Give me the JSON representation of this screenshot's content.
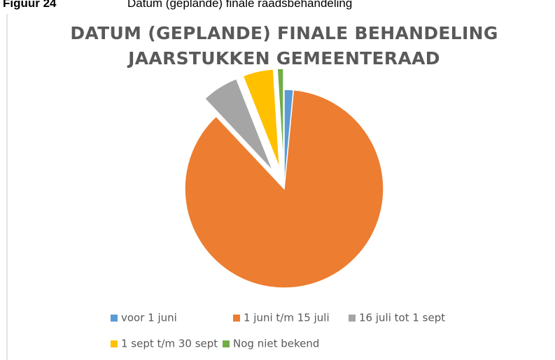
{
  "caption": {
    "label": "Figuur 24",
    "text": "Datum (geplande) finale raadsbehandeling"
  },
  "chart_data": {
    "type": "pie",
    "title": [
      "DATUM (GEPLANDE) FINALE BEHANDELING",
      "JAARSTUKKEN GEMEENTERAAD"
    ],
    "categories": [
      "voor 1 juni",
      "1 juni t/m 15 juli",
      "16 juli tot 1 sept",
      "1 sept t/m 30 sept",
      "Nog niet bekend"
    ],
    "values": [
      1.5,
      86.5,
      6,
      5,
      1
    ],
    "colors": [
      "#5b9bd5",
      "#ed7d31",
      "#a5a5a5",
      "#ffc000",
      "#70ad47"
    ],
    "exploded": [
      false,
      false,
      true,
      true,
      true
    ],
    "legend": "bottom"
  }
}
